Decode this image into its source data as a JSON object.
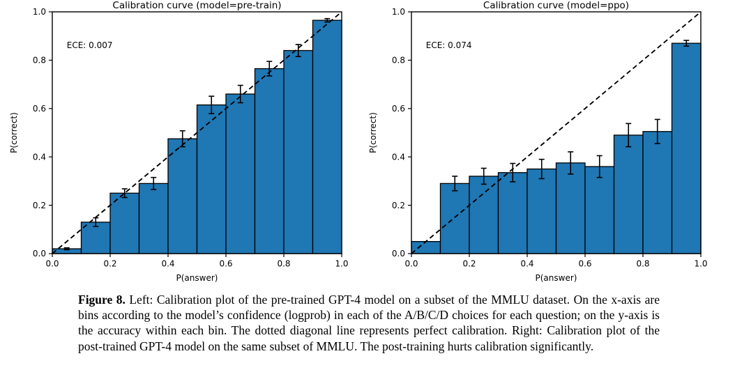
{
  "figure": {
    "caption_label": "Figure 8.",
    "caption_text": " Left: Calibration plot of the pre-trained GPT-4 model on a subset of the MMLU dataset. On the x-axis are bins according to the model’s confidence (logprob) in each of the A/B/C/D choices for each question; on the y-axis is the accuracy within each bin. The dotted diagonal line represents perfect calibration. Right: Calibration plot of the post-trained GPT-4 model on the same subset of MMLU. The post-training hurts calibration significantly."
  },
  "chart_data": [
    {
      "type": "bar",
      "title": "Calibration curve (model=pre-train)",
      "annotation": "ECE: 0.007",
      "xlabel": "P(answer)",
      "ylabel": "P(correct)",
      "xlim": [
        0.0,
        1.0
      ],
      "ylim": [
        0.0,
        1.0
      ],
      "xticks": [
        0.0,
        0.2,
        0.4,
        0.6,
        0.8,
        1.0
      ],
      "yticks": [
        0.0,
        0.2,
        0.4,
        0.6,
        0.8,
        1.0
      ],
      "grid": false,
      "diagonal_line": true,
      "bin_edges": [
        0.0,
        0.1,
        0.2,
        0.3,
        0.4,
        0.5,
        0.6,
        0.7,
        0.8,
        0.9,
        1.0
      ],
      "values": [
        0.02,
        0.13,
        0.25,
        0.29,
        0.475,
        0.615,
        0.66,
        0.765,
        0.84,
        0.965
      ],
      "errors": [
        0.004,
        0.018,
        0.018,
        0.025,
        0.033,
        0.036,
        0.036,
        0.03,
        0.025,
        0.007
      ],
      "bar_color": "#1f77b4",
      "bar_edge_color": "#000000",
      "line_color": "#000000"
    },
    {
      "type": "bar",
      "title": "Calibration curve (model=ppo)",
      "annotation": "ECE: 0.074",
      "xlabel": "P(answer)",
      "ylabel": "P(correct)",
      "xlim": [
        0.0,
        1.0
      ],
      "ylim": [
        0.0,
        1.0
      ],
      "xticks": [
        0.0,
        0.2,
        0.4,
        0.6,
        0.8,
        1.0
      ],
      "yticks": [
        0.0,
        0.2,
        0.4,
        0.6,
        0.8,
        1.0
      ],
      "grid": false,
      "diagonal_line": true,
      "bin_edges": [
        0.0,
        0.1,
        0.2,
        0.3,
        0.4,
        0.5,
        0.6,
        0.7,
        0.8,
        0.9,
        1.0
      ],
      "values": [
        0.05,
        0.29,
        0.32,
        0.335,
        0.35,
        0.375,
        0.36,
        0.49,
        0.505,
        0.87
      ],
      "errors": [
        0,
        0.03,
        0.033,
        0.038,
        0.04,
        0.046,
        0.045,
        0.048,
        0.05,
        0.012
      ],
      "bar_color": "#1f77b4",
      "bar_edge_color": "#000000",
      "line_color": "#000000"
    }
  ]
}
